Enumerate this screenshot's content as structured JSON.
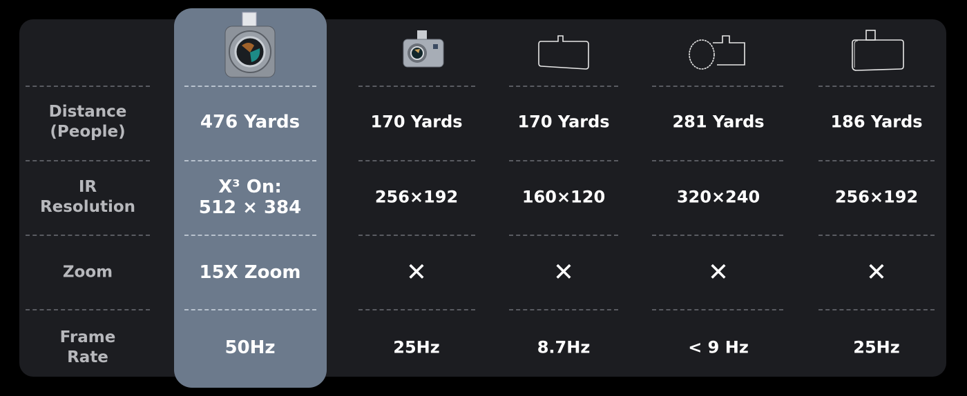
{
  "row_labels": [
    "Distance\n(People)",
    "IR\nResolution",
    "Zoom",
    "Frame\nRate"
  ],
  "products": [
    {
      "icon": "thermal-camera-featured-icon",
      "distance": "476 Yards",
      "resolution": "X³ On:\n512 × 384",
      "zoom": "15X Zoom",
      "frame_rate": "50Hz"
    },
    {
      "icon": "thermal-camera-small-icon",
      "distance": "170 Yards",
      "resolution": "256×192",
      "zoom": "✕",
      "frame_rate": "25Hz"
    },
    {
      "icon": "camera-outline-icon",
      "distance": "170 Yards",
      "resolution": "160×120",
      "zoom": "✕",
      "frame_rate": "8.7Hz"
    },
    {
      "icon": "camera-lens-outline-icon",
      "distance": "281 Yards",
      "resolution": "320×240",
      "zoom": "✕",
      "frame_rate": "< 9 Hz"
    },
    {
      "icon": "camera-thick-outline-icon",
      "distance": "186 Yards",
      "resolution": "256×192",
      "zoom": "✕",
      "frame_rate": "25Hz"
    }
  ],
  "colors": {
    "background": "#000000",
    "panel": "#1c1d21",
    "highlight": "#6c7a8c",
    "label": "#b7b8bc",
    "value": "#ffffff"
  }
}
